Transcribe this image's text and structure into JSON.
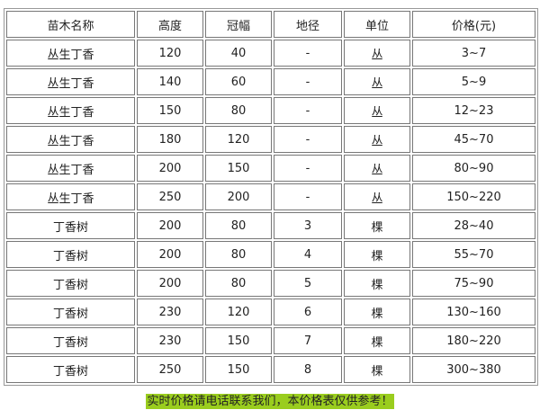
{
  "table": {
    "headers": [
      "苗木名称",
      "高度",
      "冠幅",
      "地径",
      "单位",
      "价格(元)"
    ],
    "rows": [
      [
        "丛生丁香",
        "120",
        "40",
        "-",
        "丛",
        "3~7"
      ],
      [
        "丛生丁香",
        "140",
        "60",
        "-",
        "丛",
        "5~9"
      ],
      [
        "丛生丁香",
        "150",
        "80",
        "-",
        "丛",
        "12~23"
      ],
      [
        "丛生丁香",
        "180",
        "120",
        "-",
        "丛",
        "45~70"
      ],
      [
        "丛生丁香",
        "200",
        "150",
        "-",
        "丛",
        "80~90"
      ],
      [
        "丛生丁香",
        "250",
        "200",
        "-",
        "丛",
        "150~220"
      ],
      [
        "丁香树",
        "200",
        "80",
        "3",
        "棵",
        "28~40"
      ],
      [
        "丁香树",
        "200",
        "80",
        "4",
        "棵",
        "55~70"
      ],
      [
        "丁香树",
        "200",
        "80",
        "5",
        "棵",
        "75~90"
      ],
      [
        "丁香树",
        "230",
        "120",
        "6",
        "棵",
        "130~160"
      ],
      [
        "丁香树",
        "230",
        "150",
        "7",
        "棵",
        "180~220"
      ],
      [
        "丁香树",
        "250",
        "150",
        "8",
        "棵",
        "300~380"
      ]
    ]
  },
  "note": "实时价格请电话联系我们，本价格表仅供参考！",
  "colors": {
    "note_highlight": "#9acd1e"
  }
}
